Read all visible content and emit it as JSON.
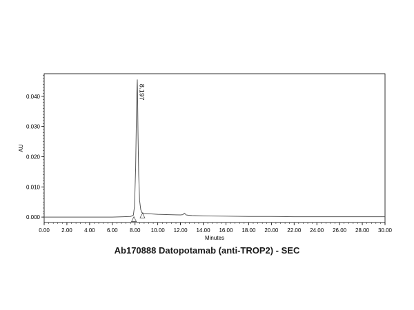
{
  "caption": "Ab170888 Datopotamab (anti-TROP2) - SEC",
  "chart_data": {
    "type": "line",
    "xlabel": "Minutes",
    "ylabel": "AU",
    "xlim": [
      0,
      30
    ],
    "ylim": [
      -0.0018,
      0.0475
    ],
    "x_ticks": [
      "0.00",
      "2.00",
      "4.00",
      "6.00",
      "8.00",
      "10.00",
      "12.00",
      "14.00",
      "16.00",
      "18.00",
      "20.00",
      "22.00",
      "24.00",
      "26.00",
      "28.00",
      "30.00"
    ],
    "y_ticks": [
      "0.000",
      "0.010",
      "0.020",
      "0.030",
      "0.040"
    ],
    "grid": false,
    "line_color": "#555555",
    "series": [
      {
        "x": [
          0,
          4,
          6,
          7,
          7.6,
          7.85,
          7.95,
          8.05,
          8.12,
          8.17,
          8.197,
          8.22,
          8.26,
          8.32,
          8.4,
          8.5,
          8.6,
          8.8,
          9.2,
          10,
          11,
          12,
          12.2,
          12.35,
          12.5,
          12.7,
          13,
          14,
          16,
          18,
          20,
          22,
          24,
          26,
          28,
          30
        ],
        "y": [
          0.0,
          0.0,
          0.0,
          0.0001,
          0.0002,
          0.0006,
          0.0035,
          0.016,
          0.033,
          0.043,
          0.0455,
          0.041,
          0.028,
          0.014,
          0.0055,
          0.0025,
          0.0015,
          0.0012,
          0.0011,
          0.0009,
          0.0008,
          0.0007,
          0.0008,
          0.0013,
          0.0007,
          0.0006,
          0.0005,
          0.0004,
          0.0003,
          0.0002,
          0.0002,
          0.0001,
          0.0001,
          0.0001,
          0.0001,
          0.0001
        ]
      }
    ],
    "annotations": [
      {
        "text": "8.197",
        "x": 8.197,
        "y": 0.0455
      }
    ],
    "integration_markers": [
      {
        "x": 7.9,
        "y": -0.0008
      },
      {
        "x": 8.65,
        "y": 0.0004
      }
    ]
  }
}
